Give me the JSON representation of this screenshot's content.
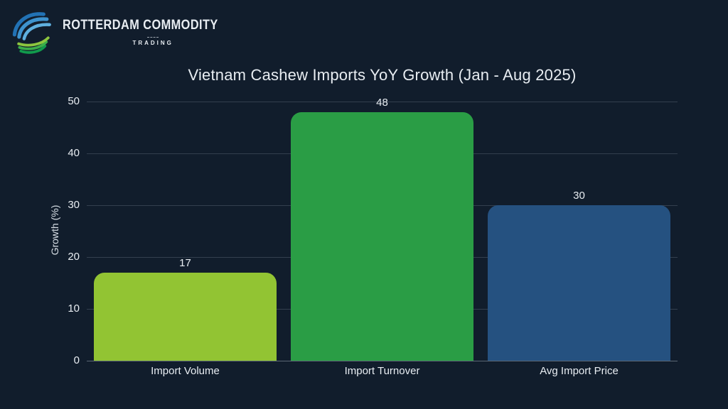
{
  "brand": {
    "line1": "ROTTERDAM COMMODITY",
    "line2": "TRADING"
  },
  "theme": {
    "background": "#111D2C",
    "text_color": "#E8EDF2",
    "muted_text_color": "#D8DFE6",
    "gridline_color": "rgba(210,222,233,0.18)",
    "logo_blues": [
      "#2272B4",
      "#3E93CE",
      "#5FB0DF"
    ],
    "logo_greens": [
      "#119A4C",
      "#3CAE49",
      "#8DC63F"
    ]
  },
  "chart_data": {
    "type": "bar",
    "title": "Vietnam Cashew Imports YoY Growth (Jan - Aug 2025)",
    "categories": [
      "Import Volume",
      "Import Turnover",
      "Avg Import Price"
    ],
    "values": [
      17,
      48,
      30
    ],
    "bar_colors": [
      "#92C433",
      "#2A9D45",
      "#255180"
    ],
    "xlabel": "",
    "ylabel": "Growth (%)",
    "ylim": [
      0,
      50
    ],
    "yticks": [
      0,
      10,
      20,
      30,
      40,
      50
    ],
    "grid": true,
    "legend": "none",
    "bar_value_labels": [
      17,
      48,
      30
    ]
  }
}
